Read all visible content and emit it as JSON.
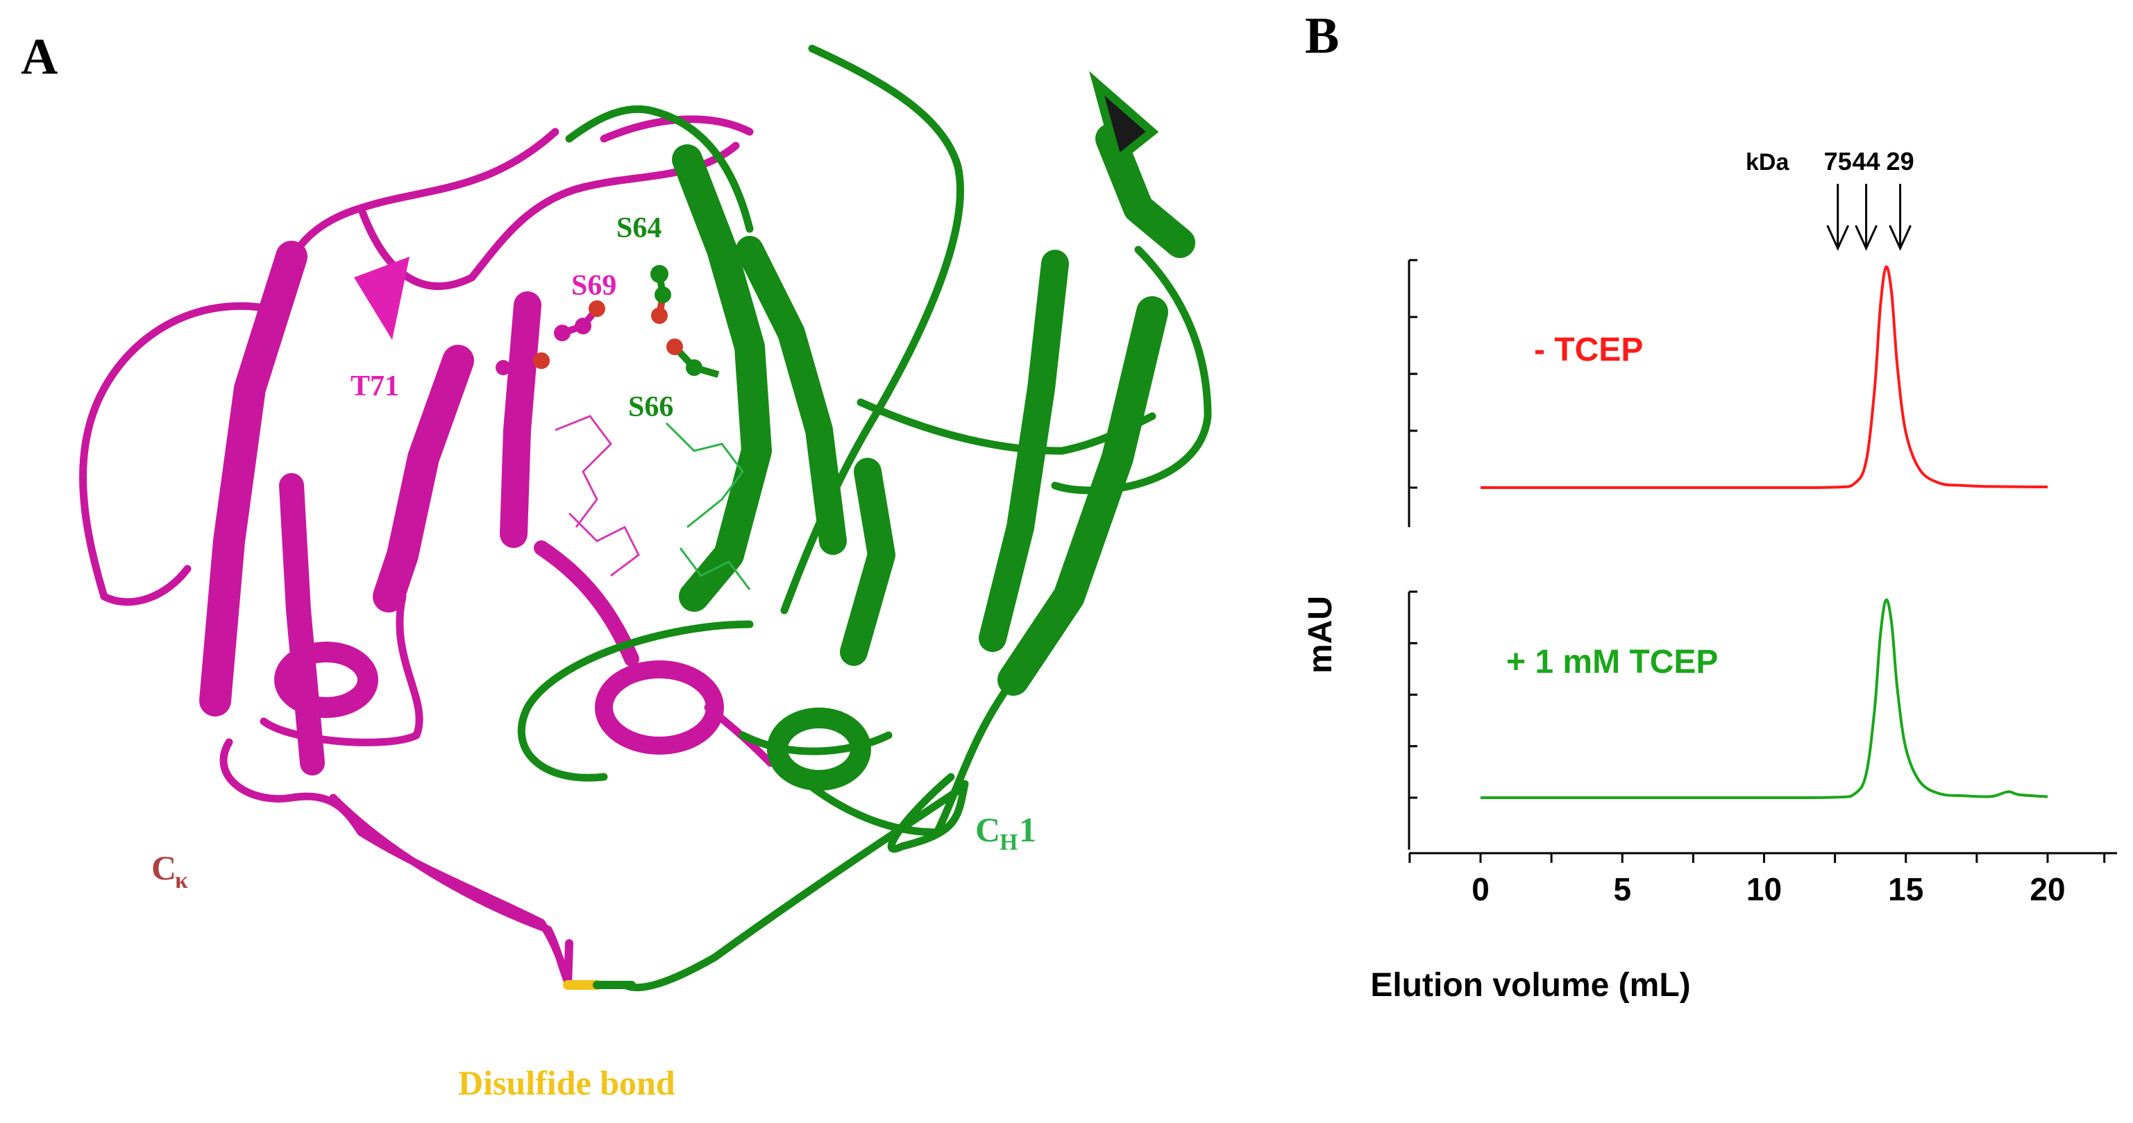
{
  "panel_a": {
    "letter": "A",
    "labels": {
      "s64": "S64",
      "s69": "S69",
      "t71": "T71",
      "s66": "S66",
      "ck_base": "C",
      "ck_sub": "κ",
      "ch1_base": "C",
      "ch1_sub": "H",
      "ch1_suffix": "1",
      "disulfide": "Disulfide bond"
    },
    "colors": {
      "light_chain": "#c8179e",
      "heavy_chain": "#168a16",
      "heavy_label": "#2db04b",
      "ck_label": "#b04040",
      "disulfide": "#f2c31a"
    }
  },
  "panel_b": {
    "letter": "B",
    "size_markers": {
      "unit": "kDa",
      "values": [
        "75",
        "44",
        "29"
      ]
    },
    "colors": {
      "minus_tcep": "#ff1a1a",
      "plus_tcep": "#1aa61a"
    }
  },
  "chart_data": {
    "type": "line",
    "xlabel": "Elution volume (mL)",
    "ylabel": "mAU",
    "xlim": [
      -2.5,
      22
    ],
    "xticks": [
      0,
      5,
      10,
      15,
      20
    ],
    "size_marker_positions_mL": [
      12.6,
      13.6,
      14.8
    ],
    "subplots": [
      {
        "name": "- TCEP",
        "color": "#ff1a1a",
        "x": [
          0,
          5,
          10,
          12.5,
          13.2,
          13.6,
          13.9,
          14.1,
          14.3,
          14.5,
          14.7,
          15.0,
          15.5,
          16.2,
          17.0,
          18.0,
          20.0
        ],
        "values": [
          0,
          0,
          0,
          0.002,
          0.02,
          0.12,
          0.45,
          0.82,
          1.0,
          0.88,
          0.55,
          0.25,
          0.08,
          0.02,
          0.01,
          0.005,
          0.003
        ]
      },
      {
        "name": "+ 1 mM TCEP",
        "color": "#1aa61a",
        "x": [
          0,
          5,
          10,
          12.5,
          13.2,
          13.6,
          13.9,
          14.1,
          14.3,
          14.5,
          14.7,
          15.0,
          15.5,
          16.2,
          17.0,
          18.0,
          18.6,
          19.0,
          20.0
        ],
        "values": [
          0,
          0,
          0,
          0.002,
          0.02,
          0.12,
          0.45,
          0.82,
          1.0,
          0.88,
          0.55,
          0.25,
          0.08,
          0.02,
          0.01,
          0.006,
          0.03,
          0.015,
          0.005
        ]
      }
    ]
  }
}
